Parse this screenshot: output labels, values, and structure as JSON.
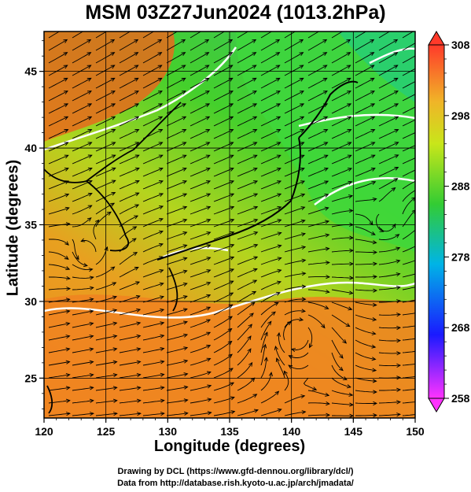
{
  "title": "MSM 03Z27Jun2024 (1013.2hPa)",
  "x_axis": {
    "label": "Longitude (degrees)",
    "ticks": [
      "120",
      "125",
      "130",
      "135",
      "140",
      "145",
      "150"
    ]
  },
  "y_axis": {
    "label": "Latitude  (degrees)",
    "ticks": [
      "25",
      "30",
      "35",
      "40",
      "45"
    ]
  },
  "colorbar": {
    "ticks": [
      "258",
      "268",
      "278",
      "288",
      "298",
      "308"
    ],
    "min": 258,
    "max": 308
  },
  "credits": {
    "line1": "Drawing by DCL (https://www.gfd-dennou.org/library/dcl/)",
    "line2": "Data from http://database.rish.kyoto-u.ac.jp/arch/jmadata/"
  },
  "map_extent": {
    "lon": [
      120,
      150
    ],
    "lat": [
      22.4,
      47.6
    ]
  },
  "colors": {
    "warm": "#f07a1c",
    "mid": "#33cc33",
    "cool": "#00cccc",
    "cold": "#1a1aff",
    "coldest": "#ff33ff",
    "hot": "#ff3a2a"
  }
}
